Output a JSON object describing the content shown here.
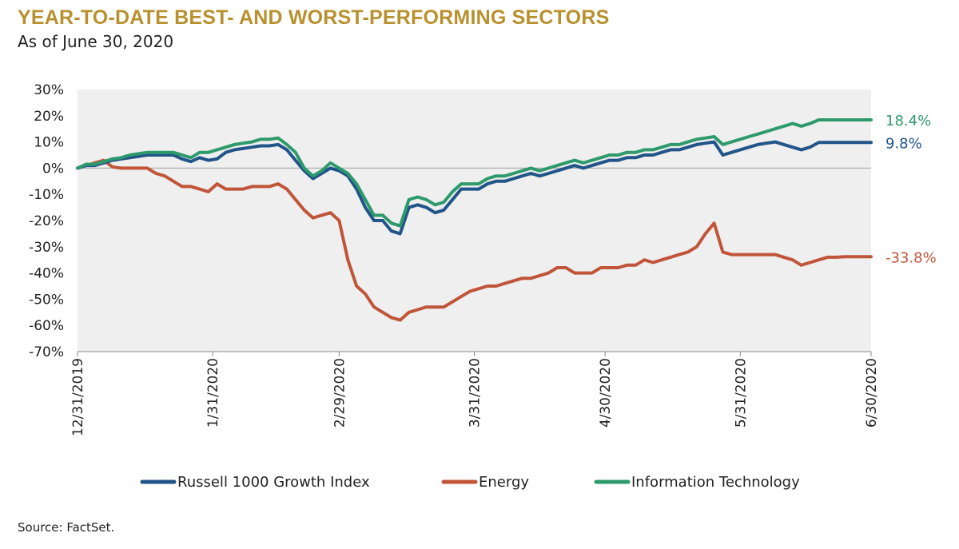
{
  "title": "YEAR-TO-DATE BEST- AND WORST-PERFORMING SECTORS",
  "subtitle": "As of June 30, 2020",
  "source": "Source: FactSet.",
  "colors": {
    "title": "#B8912E",
    "plot_background": "#EFEFEF",
    "zero_line": "#B0B0B0",
    "axis": "#888888"
  },
  "chart_data": {
    "type": "line",
    "title": "YEAR-TO-DATE BEST- AND WORST-PERFORMING SECTORS",
    "subtitle": "As of June 30, 2020",
    "xlabel": "",
    "ylabel": "",
    "ylim": [
      -70,
      30
    ],
    "yticks": [
      30,
      20,
      10,
      0,
      -10,
      -20,
      -30,
      -40,
      -50,
      -60,
      -70
    ],
    "ytick_labels": [
      "30%",
      "20%",
      "10%",
      "0%",
      "-10%",
      "-20%",
      "-30%",
      "-40%",
      "-50%",
      "-60%",
      "-70%"
    ],
    "xlim": [
      0,
      182
    ],
    "xticks": [
      0,
      31,
      60,
      91,
      121,
      152,
      182
    ],
    "xtick_labels": [
      "12/31/2019",
      "1/31/2020",
      "2/29/2020",
      "3/31/2020",
      "4/30/2020",
      "5/31/2020",
      "6/30/2020"
    ],
    "x_units": "days since 12/31/2019",
    "legend_position": "bottom",
    "series": [
      {
        "name": "Russell 1000 Growth Index",
        "color": "#215488",
        "end_label": "9.8%",
        "x": [
          0,
          2,
          4,
          6,
          8,
          10,
          12,
          14,
          16,
          18,
          20,
          22,
          24,
          26,
          28,
          30,
          32,
          34,
          36,
          38,
          40,
          42,
          44,
          46,
          48,
          50,
          52,
          54,
          56,
          58,
          60,
          62,
          64,
          66,
          68,
          70,
          72,
          74,
          76,
          78,
          80,
          82,
          84,
          86,
          88,
          90,
          92,
          94,
          96,
          98,
          100,
          102,
          104,
          106,
          108,
          110,
          112,
          114,
          116,
          118,
          120,
          122,
          124,
          126,
          128,
          130,
          132,
          134,
          136,
          138,
          140,
          142,
          144,
          146,
          148,
          150,
          152,
          154,
          156,
          158,
          160,
          162,
          164,
          166,
          168,
          170,
          172,
          174,
          176,
          178,
          180,
          182
        ],
        "values": [
          0,
          1,
          1,
          2,
          3,
          3.5,
          4,
          4.5,
          5,
          5,
          5,
          5,
          3.5,
          2.5,
          4,
          3,
          3.5,
          6,
          7,
          7.5,
          8,
          8.5,
          8.5,
          9,
          7,
          3,
          -1,
          -4,
          -2,
          0,
          -1,
          -3,
          -8,
          -15,
          -20,
          -20,
          -24,
          -25,
          -15,
          -14,
          -15,
          -17,
          -16,
          -12,
          -8,
          -8,
          -8,
          -6,
          -5,
          -5,
          -4,
          -3,
          -2,
          -3,
          -2,
          -1,
          0,
          1,
          0,
          1,
          2,
          3,
          3,
          4,
          4,
          5,
          5,
          6,
          7,
          7,
          8,
          9,
          9.5,
          10,
          5,
          6,
          7,
          8,
          9,
          9.5,
          10,
          9,
          8,
          7,
          8,
          9.8,
          9.8,
          9.8,
          9.8,
          9.8,
          9.8,
          9.8
        ]
      },
      {
        "name": "Energy",
        "color": "#C0553A",
        "end_label": "-33.8%",
        "x": [
          0,
          2,
          4,
          6,
          8,
          10,
          12,
          14,
          16,
          18,
          20,
          22,
          24,
          26,
          28,
          30,
          32,
          34,
          36,
          38,
          40,
          42,
          44,
          46,
          48,
          50,
          52,
          54,
          56,
          58,
          60,
          62,
          64,
          66,
          68,
          70,
          72,
          74,
          76,
          78,
          80,
          82,
          84,
          86,
          88,
          90,
          92,
          94,
          96,
          98,
          100,
          102,
          104,
          106,
          108,
          110,
          112,
          114,
          116,
          118,
          120,
          122,
          124,
          126,
          128,
          130,
          132,
          134,
          136,
          138,
          140,
          142,
          144,
          146,
          148,
          150,
          152,
          154,
          156,
          158,
          160,
          162,
          164,
          166,
          168,
          170,
          172,
          174,
          176,
          178,
          180,
          182
        ],
        "values": [
          0,
          1,
          2,
          3,
          0.5,
          0,
          0,
          0,
          0,
          -2,
          -3,
          -5,
          -7,
          -7,
          -8,
          -9,
          -6,
          -8,
          -8,
          -8,
          -7,
          -7,
          -7,
          -6,
          -8,
          -12,
          -16,
          -19,
          -18,
          -17,
          -20,
          -35,
          -45,
          -48,
          -53,
          -55,
          -57,
          -58,
          -55,
          -54,
          -53,
          -53,
          -53,
          -51,
          -49,
          -47,
          -46,
          -45,
          -45,
          -44,
          -43,
          -42,
          -42,
          -41,
          -40,
          -38,
          -38,
          -40,
          -40,
          -40,
          -38,
          -38,
          -38,
          -37,
          -37,
          -35,
          -36,
          -35,
          -34,
          -33,
          -32,
          -30,
          -25,
          -21,
          -32,
          -33,
          -33,
          -33,
          -33,
          -33,
          -33,
          -34,
          -35,
          -37,
          -36,
          -35,
          -34,
          -34,
          -33.8,
          -33.8,
          -33.8,
          -33.8
        ]
      },
      {
        "name": "Information Technology",
        "color": "#2E9A6C",
        "end_label": "18.4%",
        "x": [
          0,
          2,
          4,
          6,
          8,
          10,
          12,
          14,
          16,
          18,
          20,
          22,
          24,
          26,
          28,
          30,
          32,
          34,
          36,
          38,
          40,
          42,
          44,
          46,
          48,
          50,
          52,
          54,
          56,
          58,
          60,
          62,
          64,
          66,
          68,
          70,
          72,
          74,
          76,
          78,
          80,
          82,
          84,
          86,
          88,
          90,
          92,
          94,
          96,
          98,
          100,
          102,
          104,
          106,
          108,
          110,
          112,
          114,
          116,
          118,
          120,
          122,
          124,
          126,
          128,
          130,
          132,
          134,
          136,
          138,
          140,
          142,
          144,
          146,
          148,
          150,
          152,
          154,
          156,
          158,
          160,
          162,
          164,
          166,
          168,
          170,
          172,
          174,
          176,
          178,
          180,
          182
        ],
        "values": [
          0,
          1.5,
          1.5,
          2.5,
          3.5,
          4,
          5,
          5.5,
          6,
          6,
          6,
          6,
          5,
          4,
          6,
          6,
          7,
          8,
          9,
          9.5,
          10,
          11,
          11,
          11.5,
          9,
          6,
          0,
          -3,
          -1,
          2,
          0,
          -2,
          -6,
          -12,
          -18,
          -18,
          -21,
          -22,
          -12,
          -11,
          -12,
          -14,
          -13,
          -9,
          -6,
          -6,
          -6,
          -4,
          -3,
          -3,
          -2,
          -1,
          0,
          -1,
          0,
          1,
          2,
          3,
          2,
          3,
          4,
          5,
          5,
          6,
          6,
          7,
          7,
          8,
          9,
          9,
          10,
          11,
          11.5,
          12,
          9,
          10,
          11,
          12,
          13,
          14,
          15,
          16,
          17,
          16,
          17,
          18.4,
          18.4,
          18.4,
          18.4,
          18.4,
          18.4,
          18.4
        ]
      }
    ]
  }
}
